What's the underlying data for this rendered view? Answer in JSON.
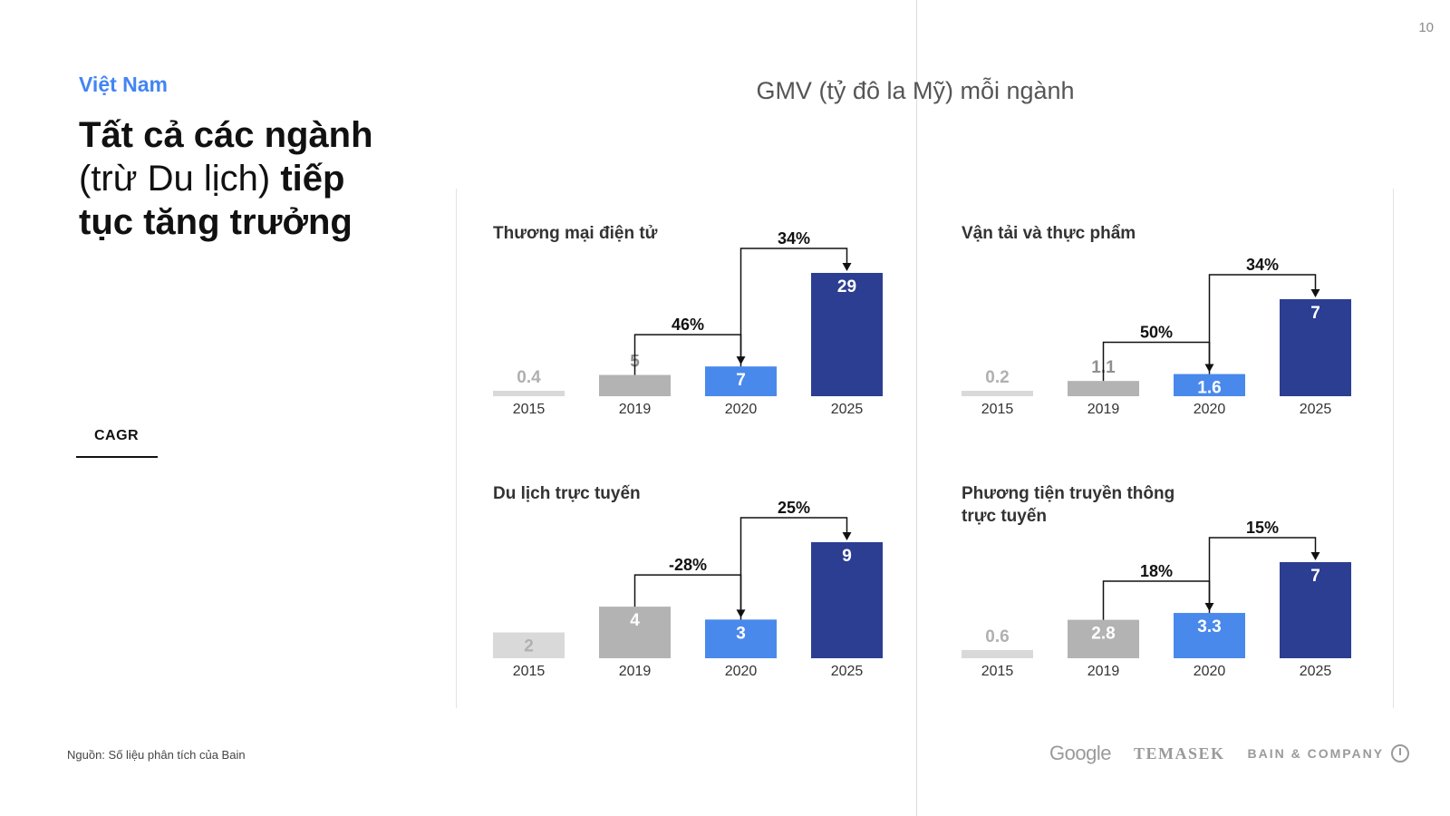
{
  "page_number": "10",
  "header": {
    "country": "Việt Nam",
    "headline_part1": "Tất cả các ngành",
    "headline_part2": "(trừ Du lịch)",
    "headline_part3": "tiếp",
    "headline_part4": "tục tăng trưởng"
  },
  "legend": {
    "cagr_label": "CAGR"
  },
  "source": "Nguồn: Số liệu phân tích của Bain",
  "figure_title": "GMV (tỷ đô la Mỹ) mỗi ngành",
  "logos": {
    "google": "Google",
    "temasek": "TEMASEK",
    "bain": "BAIN & COMPANY"
  },
  "colors": {
    "y2015": "#d9d9d9",
    "y2019": "#b3b3b3",
    "y2020": "#4a89ec",
    "y2025": "#2c3e91",
    "label_light": "#b0b0b0",
    "label_white": "#ffffff"
  },
  "chart_data": [
    {
      "type": "bar",
      "title": "Thương mại điện tử",
      "categories": [
        "2015",
        "2019",
        "2020",
        "2025"
      ],
      "values": [
        0.4,
        5,
        7,
        29
      ],
      "value_labels": [
        "0.4",
        "5",
        "7",
        "29"
      ],
      "cagr": [
        {
          "from": "2019",
          "to": "2020",
          "label": "46%"
        },
        {
          "from": "2020",
          "to": "2025",
          "label": "34%"
        }
      ]
    },
    {
      "type": "bar",
      "title": "Vận tải và thực phẩm",
      "categories": [
        "2015",
        "2019",
        "2020",
        "2025"
      ],
      "values": [
        0.2,
        1.1,
        1.6,
        7
      ],
      "value_labels": [
        "0.2",
        "1.1",
        "1.6",
        "7"
      ],
      "cagr": [
        {
          "from": "2019",
          "to": "2020",
          "label": "50%"
        },
        {
          "from": "2020",
          "to": "2025",
          "label": "34%"
        }
      ]
    },
    {
      "type": "bar",
      "title": "Du lịch trực tuyến",
      "categories": [
        "2015",
        "2019",
        "2020",
        "2025"
      ],
      "values": [
        2,
        4,
        3,
        9
      ],
      "value_labels": [
        "2",
        "4",
        "3",
        "9"
      ],
      "cagr": [
        {
          "from": "2019",
          "to": "2020",
          "label": "-28%"
        },
        {
          "from": "2020",
          "to": "2025",
          "label": "25%"
        }
      ]
    },
    {
      "type": "bar",
      "title": "Phương tiện truyền thông trực tuyến",
      "categories": [
        "2015",
        "2019",
        "2020",
        "2025"
      ],
      "values": [
        0.6,
        2.8,
        3.3,
        7
      ],
      "value_labels": [
        "0.6",
        "2.8",
        "3.3",
        "7"
      ],
      "cagr": [
        {
          "from": "2019",
          "to": "2020",
          "label": "18%"
        },
        {
          "from": "2020",
          "to": "2025",
          "label": "15%"
        }
      ]
    }
  ]
}
